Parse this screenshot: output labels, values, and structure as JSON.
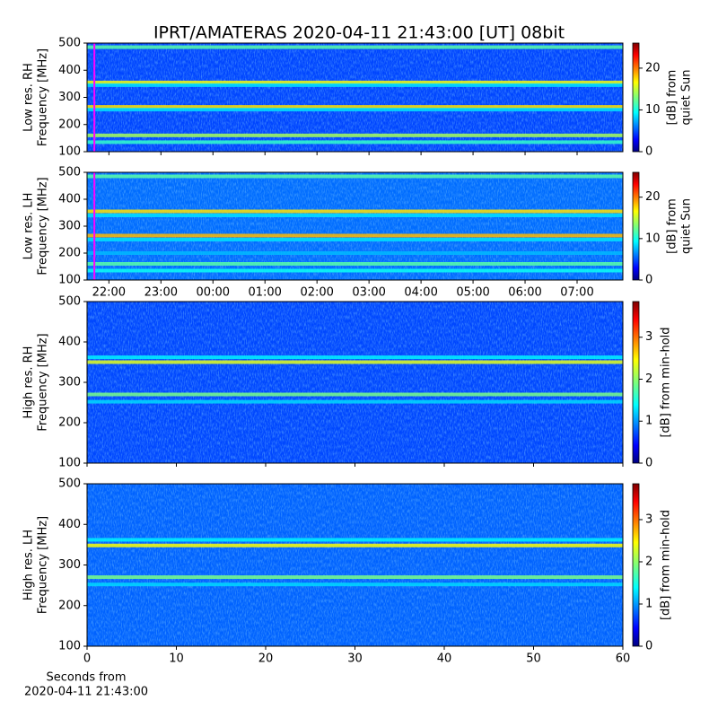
{
  "title": "IPRT/AMATERAS 2020-04-11 21:43:00 [UT]   08bit",
  "chart_data": [
    {
      "type": "heatmap",
      "ylabel": [
        "Low res. RH",
        "Frequency [MHz]"
      ],
      "sharex": true,
      "ylim": [
        100,
        500
      ],
      "yticks": [
        100,
        200,
        300,
        400,
        500
      ],
      "clim": [
        0,
        26
      ],
      "cticks": [
        0,
        10,
        20
      ],
      "clabel": [
        "[dB] from",
        "quiet Sun"
      ],
      "background_level": 5,
      "marker": {
        "x": 21.72,
        "color": "#ff00ff"
      },
      "bands": [
        {
          "freq": 485,
          "level": 12
        },
        {
          "freq": 355,
          "level": 16
        },
        {
          "freq": 345,
          "level": 9
        },
        {
          "freq": 265,
          "level": 17
        },
        {
          "freq": 255,
          "level": 9
        },
        {
          "freq": 160,
          "level": 14
        },
        {
          "freq": 135,
          "level": 11
        }
      ]
    },
    {
      "type": "heatmap",
      "ylabel": [
        "Low res. LH",
        "Frequency [MHz]"
      ],
      "xlim": [
        21.58,
        31.88
      ],
      "xticks": [
        {
          "value": 22,
          "label": "22:00"
        },
        {
          "value": 23,
          "label": "23:00"
        },
        {
          "value": 24,
          "label": "00:00"
        },
        {
          "value": 25,
          "label": "01:00"
        },
        {
          "value": 26,
          "label": "02:00"
        },
        {
          "value": 27,
          "label": "03:00"
        },
        {
          "value": 28,
          "label": "04:00"
        },
        {
          "value": 29,
          "label": "05:00"
        },
        {
          "value": 30,
          "label": "06:00"
        },
        {
          "value": 31,
          "label": "07:00"
        }
      ],
      "ylim": [
        100,
        500
      ],
      "yticks": [
        100,
        200,
        300,
        400,
        500
      ],
      "clim": [
        0,
        26
      ],
      "cticks": [
        0,
        10,
        20
      ],
      "clabel": [
        "[dB] from",
        "quiet Sun"
      ],
      "background_level": 6,
      "marker": {
        "x": 21.72,
        "color": "#ff00ff"
      },
      "bands": [
        {
          "freq": 485,
          "level": 12
        },
        {
          "freq": 355,
          "level": 17
        },
        {
          "freq": 340,
          "level": 9
        },
        {
          "freq": 265,
          "level": 18
        },
        {
          "freq": 250,
          "level": 9
        },
        {
          "freq": 200,
          "level": 8
        },
        {
          "freq": 160,
          "level": 12
        },
        {
          "freq": 135,
          "level": 10
        }
      ]
    },
    {
      "type": "heatmap",
      "ylabel": [
        "High res. RH",
        "Frequency [MHz]"
      ],
      "sharex": true,
      "ylim": [
        100,
        500
      ],
      "yticks": [
        100,
        200,
        300,
        400,
        500
      ],
      "clim": [
        0,
        3.85
      ],
      "cticks": [
        0,
        1,
        2,
        3
      ],
      "clabel": [
        "[dB] from min-hold"
      ],
      "background_level": 0.75,
      "bands": [
        {
          "freq": 362,
          "level": 1.4
        },
        {
          "freq": 350,
          "level": 2.3
        },
        {
          "freq": 270,
          "level": 1.9
        },
        {
          "freq": 252,
          "level": 1.3
        }
      ]
    },
    {
      "type": "heatmap",
      "ylabel": [
        "High res. LH",
        "Frequency [MHz]"
      ],
      "xlim": [
        0,
        60
      ],
      "xticks": [
        0,
        10,
        20,
        30,
        40,
        50,
        60
      ],
      "xlabel": [
        "Seconds from",
        "2020-04-11 21:43:00"
      ],
      "ylim": [
        100,
        500
      ],
      "yticks": [
        100,
        200,
        300,
        400,
        500
      ],
      "clim": [
        0,
        3.85
      ],
      "cticks": [
        0,
        1,
        2,
        3
      ],
      "clabel": [
        "[dB] from min-hold"
      ],
      "background_level": 0.85,
      "bands": [
        {
          "freq": 362,
          "level": 1.4
        },
        {
          "freq": 348,
          "level": 2.4
        },
        {
          "freq": 270,
          "level": 1.9
        },
        {
          "freq": 252,
          "level": 1.3
        }
      ]
    }
  ]
}
